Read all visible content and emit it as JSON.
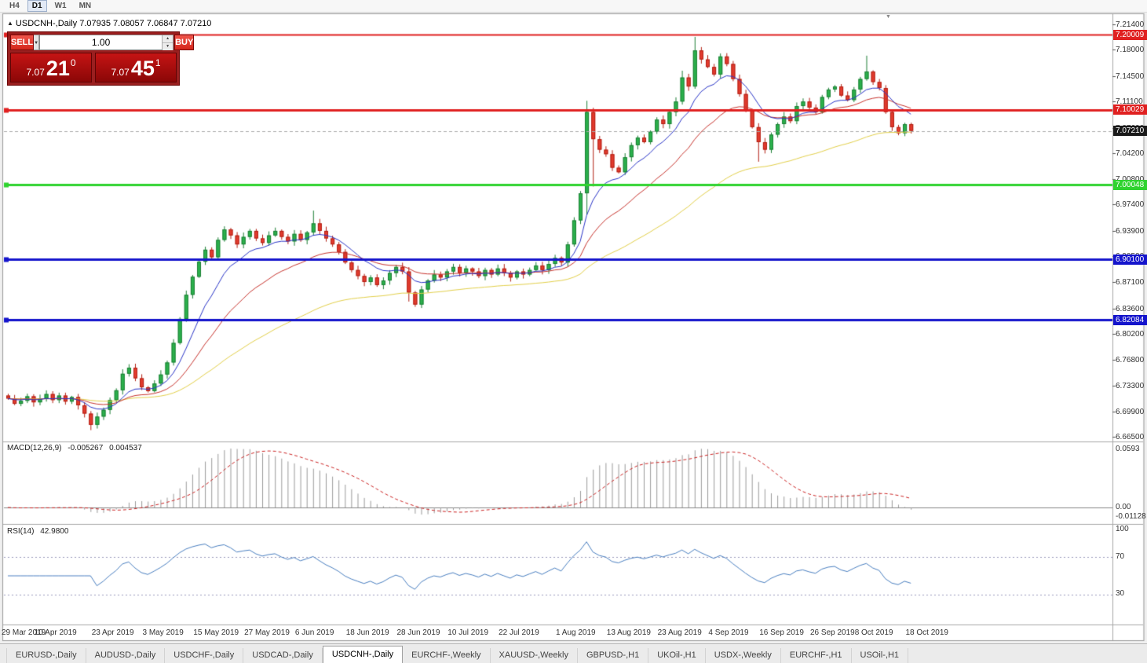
{
  "toolbar": {
    "periods": [
      {
        "label": "H4",
        "active": false
      },
      {
        "label": "D1",
        "active": true
      },
      {
        "label": "W1",
        "active": false
      },
      {
        "label": "MN",
        "active": false
      }
    ]
  },
  "chart_header": {
    "collapse_icon": "▲",
    "text": "USDCNH-,Daily  7.07935 7.08057 7.06847 7.07210"
  },
  "one_click": {
    "sell_label": "SELL",
    "buy_label": "BUY",
    "volume": "1.00",
    "sell_price": {
      "prefix": "7.07",
      "big": "21",
      "sup": "0"
    },
    "buy_price": {
      "prefix": "7.07",
      "big": "45",
      "sup": "1"
    }
  },
  "icons": {
    "dropdown": "▼",
    "spinner_up": "▲",
    "spinner_down": "▼",
    "shift_marker": "▼"
  },
  "price_axis_labels": [
    "7.21400",
    "7.18000",
    "7.14500",
    "7.11100",
    "7.07600",
    "7.04200",
    "7.00800",
    "6.97400",
    "6.93900",
    "6.90500",
    "6.87100",
    "6.83600",
    "6.80200",
    "6.76800",
    "6.73300",
    "6.69900",
    "6.66500"
  ],
  "hlines": [
    {
      "price": 7.20009,
      "badge": "7.20009",
      "color": "#E02020",
      "width": 2
    },
    {
      "price": 7.10029,
      "badge": "7.10029",
      "color": "#E02020",
      "width": 3
    },
    {
      "price": 7.00048,
      "badge": "7.00048",
      "color": "#2FD32F",
      "width": 3
    },
    {
      "price": 6.901,
      "badge": "6.90100",
      "color": "#1414CC",
      "width": 3
    },
    {
      "price": 6.82084,
      "badge": "6.82084",
      "color": "#1414CC",
      "width": 3
    }
  ],
  "current_price": 7.0721,
  "current_price_badge": "7.07210",
  "indicators": {
    "macd": {
      "label": "MACD(12,26,9)",
      "value_main": "-0.005267",
      "value_signal": "0.004537",
      "axis": [
        "0.0593",
        "0.00",
        "-0.01128"
      ],
      "fast": 12,
      "slow": 26,
      "signal": 9
    },
    "rsi": {
      "label": "RSI(14)",
      "value": "42.9800",
      "axis": [
        "100",
        "70",
        "30"
      ],
      "levels": [
        70,
        30
      ],
      "period": 14
    }
  },
  "date_axis": [
    {
      "label": "29 Mar 2019",
      "i": 0
    },
    {
      "label": "10 Apr 2019",
      "i": 8
    },
    {
      "label": "23 Apr 2019",
      "i": 17
    },
    {
      "label": "3 May 2019",
      "i": 25
    },
    {
      "label": "15 May 2019",
      "i": 33
    },
    {
      "label": "27 May 2019",
      "i": 41
    },
    {
      "label": "6 Jun 2019",
      "i": 49
    },
    {
      "label": "18 Jun 2019",
      "i": 57
    },
    {
      "label": "28 Jun 2019",
      "i": 65
    },
    {
      "label": "10 Jul 2019",
      "i": 73
    },
    {
      "label": "22 Jul 2019",
      "i": 81
    },
    {
      "label": "1 Aug 2019",
      "i": 90
    },
    {
      "label": "13 Aug 2019",
      "i": 98
    },
    {
      "label": "23 Aug 2019",
      "i": 106
    },
    {
      "label": "4 Sep 2019",
      "i": 114
    },
    {
      "label": "16 Sep 2019",
      "i": 122
    },
    {
      "label": "26 Sep 2019",
      "i": 130
    },
    {
      "label": "8 Oct 2019",
      "i": 137
    },
    {
      "label": "18 Oct 2019",
      "i": 145
    }
  ],
  "tabs": [
    {
      "label": "EURUSD-,Daily",
      "active": false
    },
    {
      "label": "AUDUSD-,Daily",
      "active": false
    },
    {
      "label": "USDCHF-,Daily",
      "active": false
    },
    {
      "label": "USDCAD-,Daily",
      "active": false
    },
    {
      "label": "USDCNH-,Daily",
      "active": true
    },
    {
      "label": "EURCHF-,Weekly",
      "active": false
    },
    {
      "label": "XAUUSD-,Weekly",
      "active": false
    },
    {
      "label": "GBPUSD-,H1",
      "active": false
    },
    {
      "label": "UKOil-,H1",
      "active": false
    },
    {
      "label": "USDX-,Weekly",
      "active": false
    },
    {
      "label": "EURCHF-,H1",
      "active": false
    },
    {
      "label": "USOil-,H1",
      "active": false
    }
  ],
  "colors": {
    "bull": "#2BB14C",
    "bull_stroke": "#1d7f35",
    "bear": "#E23B2E",
    "bear_stroke": "#b22014",
    "macd_hist": "#9a9a9a",
    "macd_signal": "#cc2222",
    "rsi_line": "#4a7fc1",
    "current_badge": "#1a1a1a"
  },
  "chart_data": {
    "type": "candlestick",
    "symbol": "USDCNH-",
    "timeframe": "Daily",
    "first_open": 6.72,
    "closes": [
      6.716,
      6.709,
      6.713,
      6.719,
      6.711,
      6.716,
      6.722,
      6.714,
      6.72,
      6.712,
      6.718,
      6.707,
      6.696,
      6.681,
      6.692,
      6.701,
      6.714,
      6.727,
      6.749,
      6.757,
      6.743,
      6.731,
      6.726,
      6.736,
      6.748,
      6.764,
      6.79,
      6.822,
      6.854,
      6.878,
      6.898,
      6.914,
      6.904,
      6.927,
      6.941,
      6.933,
      6.921,
      6.931,
      6.939,
      6.929,
      6.923,
      6.933,
      6.939,
      6.931,
      6.925,
      6.935,
      6.927,
      6.937,
      6.949,
      6.939,
      6.929,
      6.921,
      6.911,
      6.897,
      6.887,
      6.879,
      6.871,
      6.877,
      6.867,
      6.873,
      6.883,
      6.891,
      6.885,
      6.857,
      6.841,
      6.861,
      6.873,
      6.881,
      6.877,
      6.885,
      6.891,
      6.883,
      6.889,
      6.885,
      6.879,
      6.887,
      6.881,
      6.889,
      6.883,
      6.877,
      6.885,
      6.881,
      6.887,
      6.893,
      6.887,
      6.895,
      6.903,
      6.897,
      6.921,
      6.953,
      6.989,
      7.097,
      7.061,
      7.047,
      7.041,
      7.023,
      7.017,
      7.037,
      7.053,
      7.063,
      7.057,
      7.071,
      7.087,
      7.081,
      7.097,
      7.111,
      7.143,
      7.131,
      7.179,
      7.167,
      7.157,
      7.147,
      7.171,
      7.161,
      7.141,
      7.121,
      7.099,
      7.077,
      7.057,
      7.047,
      7.067,
      7.081,
      7.091,
      7.085,
      7.105,
      7.111,
      7.103,
      7.097,
      7.117,
      7.127,
      7.131,
      7.119,
      7.113,
      7.127,
      7.141,
      7.151,
      7.137,
      7.129,
      7.097,
      7.077,
      7.069,
      7.081,
      7.072
    ],
    "wick_overrides": {
      "13": {
        "low": 6.674
      },
      "48": {
        "high": 6.966
      },
      "63": {
        "low": 6.845
      },
      "64": {
        "low": 6.838
      },
      "90": {
        "high": 6.992
      },
      "91": {
        "high": 7.112,
        "low": 6.96
      },
      "92": {
        "low": 6.998
      },
      "106": {
        "high": 7.152
      },
      "108": {
        "high": 7.197
      },
      "114": {
        "high": 7.165
      },
      "118": {
        "low": 7.031
      },
      "135": {
        "high": 7.172
      }
    },
    "moving_averages": [
      {
        "period": 55,
        "color": "#E3D04A"
      },
      {
        "period": 21,
        "color": "#C8342E"
      },
      {
        "period": 9,
        "color": "#2A35C8"
      }
    ],
    "ylim": [
      6.665,
      7.214
    ]
  }
}
